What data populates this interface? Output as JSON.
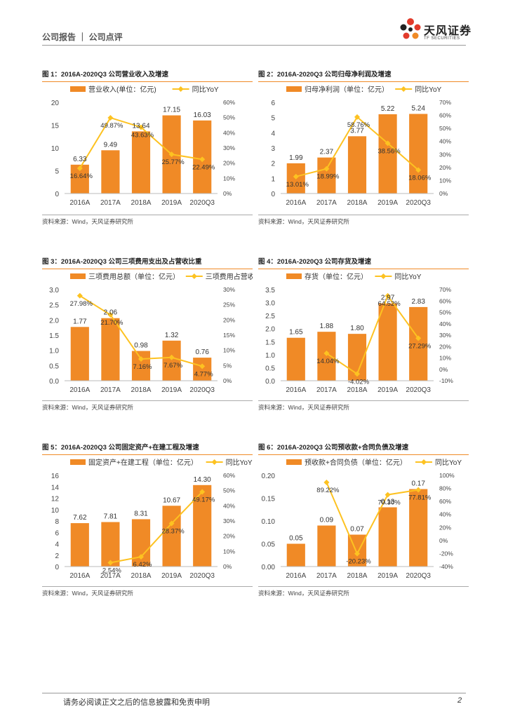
{
  "header": {
    "text": "公司报告 ｜ 公司点评",
    "logo_cn": "天风证券",
    "logo_en": "TF SECURITIES"
  },
  "colors": {
    "bar": "#f08a26",
    "line": "#fdc221"
  },
  "footer": {
    "disclaimer": "请务必阅读正文之后的信息披露和免责申明",
    "page": "2"
  },
  "chart_data": [
    {
      "type": "bar",
      "title": "图 1：2016A-2020Q3 公司营业收入及增速",
      "source": "资料来源：Wind，天风证券研究所",
      "categories": [
        "2016A",
        "2017A",
        "2018A",
        "2019A",
        "2020Q3"
      ],
      "series": [
        {
          "name": "营业收入(单位：亿元)",
          "kind": "bar",
          "values": [
            6.33,
            9.49,
            13.64,
            17.15,
            16.03
          ],
          "labels": [
            "6.33",
            "9.49",
            "13.64",
            "17.15",
            "16.03"
          ]
        },
        {
          "name": "同比YoY",
          "kind": "line",
          "values": [
            16.64,
            49.87,
            43.63,
            25.77,
            22.49
          ],
          "labels": [
            "16.64%",
            "49.87%",
            "43.63%",
            "25.77%",
            "22.49%"
          ]
        }
      ],
      "left_axis": {
        "min": 0,
        "max": 20,
        "ticks": [
          "0",
          "5",
          "10",
          "15",
          "20"
        ]
      },
      "right_axis": {
        "min": 0,
        "max": 60,
        "ticks": [
          "0%",
          "10%",
          "20%",
          "30%",
          "40%",
          "50%",
          "60%"
        ]
      }
    },
    {
      "type": "bar",
      "title": "图 2：2016A-2020Q3 公司归母净利润及增速",
      "source": "资料来源：Wind，天风证券研究所",
      "categories": [
        "2016A",
        "2017A",
        "2018A",
        "2019A",
        "2020Q3"
      ],
      "series": [
        {
          "name": "归母净利润（单位：亿元）",
          "kind": "bar",
          "values": [
            1.99,
            2.37,
            3.77,
            5.22,
            5.24
          ],
          "labels": [
            "1.99",
            "2.37",
            "3.77",
            "5.22",
            "5.24"
          ]
        },
        {
          "name": "同比YoY",
          "kind": "line",
          "values": [
            13.01,
            18.99,
            58.76,
            38.56,
            18.06
          ],
          "labels": [
            "13.01%",
            "18.99%",
            "58.76%",
            "38.56%",
            "18.06%"
          ]
        }
      ],
      "left_axis": {
        "min": 0,
        "max": 6,
        "ticks": [
          "0",
          "1",
          "2",
          "3",
          "4",
          "5",
          "6"
        ]
      },
      "right_axis": {
        "min": 0,
        "max": 70,
        "ticks": [
          "0%",
          "10%",
          "20%",
          "30%",
          "40%",
          "50%",
          "60%",
          "70%"
        ]
      }
    },
    {
      "type": "bar",
      "title": "图 3：2016A-2020Q3 公司三项费用支出及占营收比重",
      "source": "资料来源：Wind，天风证券研究所",
      "categories": [
        "2016A",
        "2017A",
        "2018A",
        "2019A",
        "2020Q3"
      ],
      "series": [
        {
          "name": "三项费用总额（单位：亿元）",
          "kind": "bar",
          "values": [
            1.77,
            2.06,
            0.98,
            1.32,
            0.76
          ],
          "labels": [
            "1.77",
            "2.06",
            "0.98",
            "1.32",
            "0.76"
          ]
        },
        {
          "name": "三项费用占营收比重",
          "kind": "line",
          "values": [
            27.98,
            21.7,
            7.16,
            7.67,
            4.77
          ],
          "labels": [
            "27.98%",
            "21.70%",
            "7.16%",
            "7.67%",
            "4.77%"
          ]
        }
      ],
      "left_axis": {
        "min": 0,
        "max": 3,
        "ticks": [
          "0.0",
          "0.5",
          "1.0",
          "1.5",
          "2.0",
          "2.5",
          "3.0"
        ]
      },
      "right_axis": {
        "min": 0,
        "max": 30,
        "ticks": [
          "0%",
          "5%",
          "10%",
          "15%",
          "20%",
          "25%",
          "30%"
        ]
      }
    },
    {
      "type": "bar",
      "title": "图 4：2016A-2020Q3 公司存货及增速",
      "source": "资料来源：Wind，天风证券研究所",
      "categories": [
        "2016A",
        "2017A",
        "2018A",
        "2019A",
        "2020Q3"
      ],
      "series": [
        {
          "name": "存货（单位：亿元）",
          "kind": "bar",
          "values": [
            1.65,
            1.88,
            1.8,
            2.97,
            2.83
          ],
          "labels": [
            "1.65",
            "1.88",
            "1.80",
            "2.97",
            "2.83"
          ]
        },
        {
          "name": "同比YoY",
          "kind": "line",
          "values": [
            null,
            14.04,
            -4.02,
            64.52,
            27.29
          ],
          "labels": [
            "",
            "14.04%",
            "-4.02%",
            "64.52%",
            "27.29%"
          ]
        }
      ],
      "left_axis": {
        "min": 0,
        "max": 3.5,
        "ticks": [
          "0.0",
          "0.5",
          "1.0",
          "1.5",
          "2.0",
          "2.5",
          "3.0",
          "3.5"
        ]
      },
      "right_axis": {
        "min": -10,
        "max": 70,
        "ticks": [
          "-10%",
          "0%",
          "10%",
          "20%",
          "30%",
          "40%",
          "50%",
          "60%",
          "70%"
        ]
      }
    },
    {
      "type": "bar",
      "title": "图 5：2016A-2020Q3 公司固定资产+在建工程及增速",
      "source": "资料来源：Wind，天风证券研究所",
      "categories": [
        "2016A",
        "2017A",
        "2018A",
        "2019A",
        "2020Q3"
      ],
      "series": [
        {
          "name": "固定资产+在建工程（单位：亿元）",
          "kind": "bar",
          "values": [
            7.62,
            7.81,
            8.31,
            10.67,
            14.3
          ],
          "labels": [
            "7.62",
            "7.81",
            "8.31",
            "10.67",
            "14.30"
          ]
        },
        {
          "name": "同比YoY",
          "kind": "line",
          "values": [
            null,
            2.54,
            6.42,
            28.37,
            49.17
          ],
          "labels": [
            "",
            "2.54%",
            "6.42%",
            "28.37%",
            "49.17%"
          ]
        }
      ],
      "left_axis": {
        "min": 0,
        "max": 16,
        "ticks": [
          "0",
          "2",
          "4",
          "6",
          "8",
          "10",
          "12",
          "14",
          "16"
        ]
      },
      "right_axis": {
        "min": 0,
        "max": 60,
        "ticks": [
          "0%",
          "10%",
          "20%",
          "30%",
          "40%",
          "50%",
          "60%"
        ]
      }
    },
    {
      "type": "bar",
      "title": "图 6：2016A-2020Q3 公司预收款+合同负债及增速",
      "source": "资料来源：Wind，天风证券研究所",
      "categories": [
        "2016A",
        "2017A",
        "2018A",
        "2019A",
        "2020Q3"
      ],
      "series": [
        {
          "name": "预收款+合同负债（单位：亿元）",
          "kind": "bar",
          "values": [
            0.05,
            0.09,
            0.07,
            0.13,
            0.17
          ],
          "labels": [
            "0.05",
            "0.09",
            "0.07",
            "0.13",
            "0.17"
          ]
        },
        {
          "name": "同比YoY",
          "kind": "line",
          "values": [
            null,
            89.22,
            -20.23,
            70.3,
            77.81
          ],
          "labels": [
            "",
            "89.22%",
            "-20.23%",
            "70.30%",
            "77.81%"
          ]
        }
      ],
      "left_axis": {
        "min": 0,
        "max": 0.2,
        "ticks": [
          "0.00",
          "0.05",
          "0.10",
          "0.15",
          "0.20"
        ]
      },
      "right_axis": {
        "min": -40,
        "max": 100,
        "ticks": [
          "-40%",
          "-20%",
          "0%",
          "20%",
          "40%",
          "60%",
          "80%",
          "100%"
        ]
      }
    }
  ]
}
